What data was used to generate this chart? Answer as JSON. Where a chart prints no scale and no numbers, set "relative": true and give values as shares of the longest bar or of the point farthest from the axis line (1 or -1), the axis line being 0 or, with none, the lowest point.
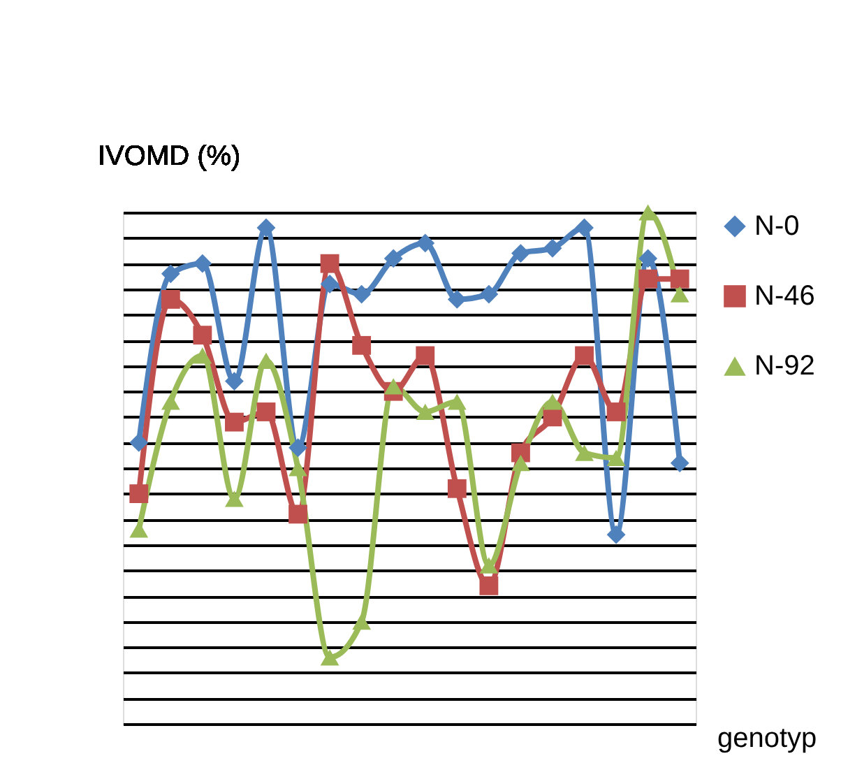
{
  "chart_data": {
    "type": "line",
    "ylabel": "IVOMD (%)",
    "xlabel": "genotyp",
    "relative": true,
    "grid": "y",
    "legend": "right",
    "line_style": "solid",
    "categories": [
      null,
      null,
      null,
      null,
      null,
      null,
      null,
      null,
      null,
      null,
      null,
      null,
      null,
      null,
      null,
      null,
      null,
      null
    ],
    "series": [
      {
        "name": "N-0",
        "color": "#4f81bd",
        "marker": "diamond",
        "values": [
          0.55,
          0.88,
          0.9,
          0.67,
          0.97,
          0.54,
          0.86,
          0.84,
          0.91,
          0.94,
          0.83,
          0.84,
          0.92,
          0.93,
          0.97,
          0.37,
          0.91,
          0.51
        ]
      },
      {
        "name": "N-46",
        "color": "#c0504d",
        "marker": "square",
        "values": [
          0.45,
          0.83,
          0.76,
          0.59,
          0.61,
          0.41,
          0.9,
          0.74,
          0.65,
          0.72,
          0.46,
          0.27,
          0.53,
          0.6,
          0.72,
          0.61,
          0.87,
          0.87
        ]
      },
      {
        "name": "N-92",
        "color": "#9bbb59",
        "marker": "triangle",
        "values": [
          0.38,
          0.63,
          0.72,
          0.44,
          0.71,
          0.5,
          0.13,
          0.2,
          0.66,
          0.61,
          0.63,
          0.31,
          0.51,
          0.63,
          0.53,
          0.52,
          1,
          0.84
        ]
      }
    ]
  }
}
